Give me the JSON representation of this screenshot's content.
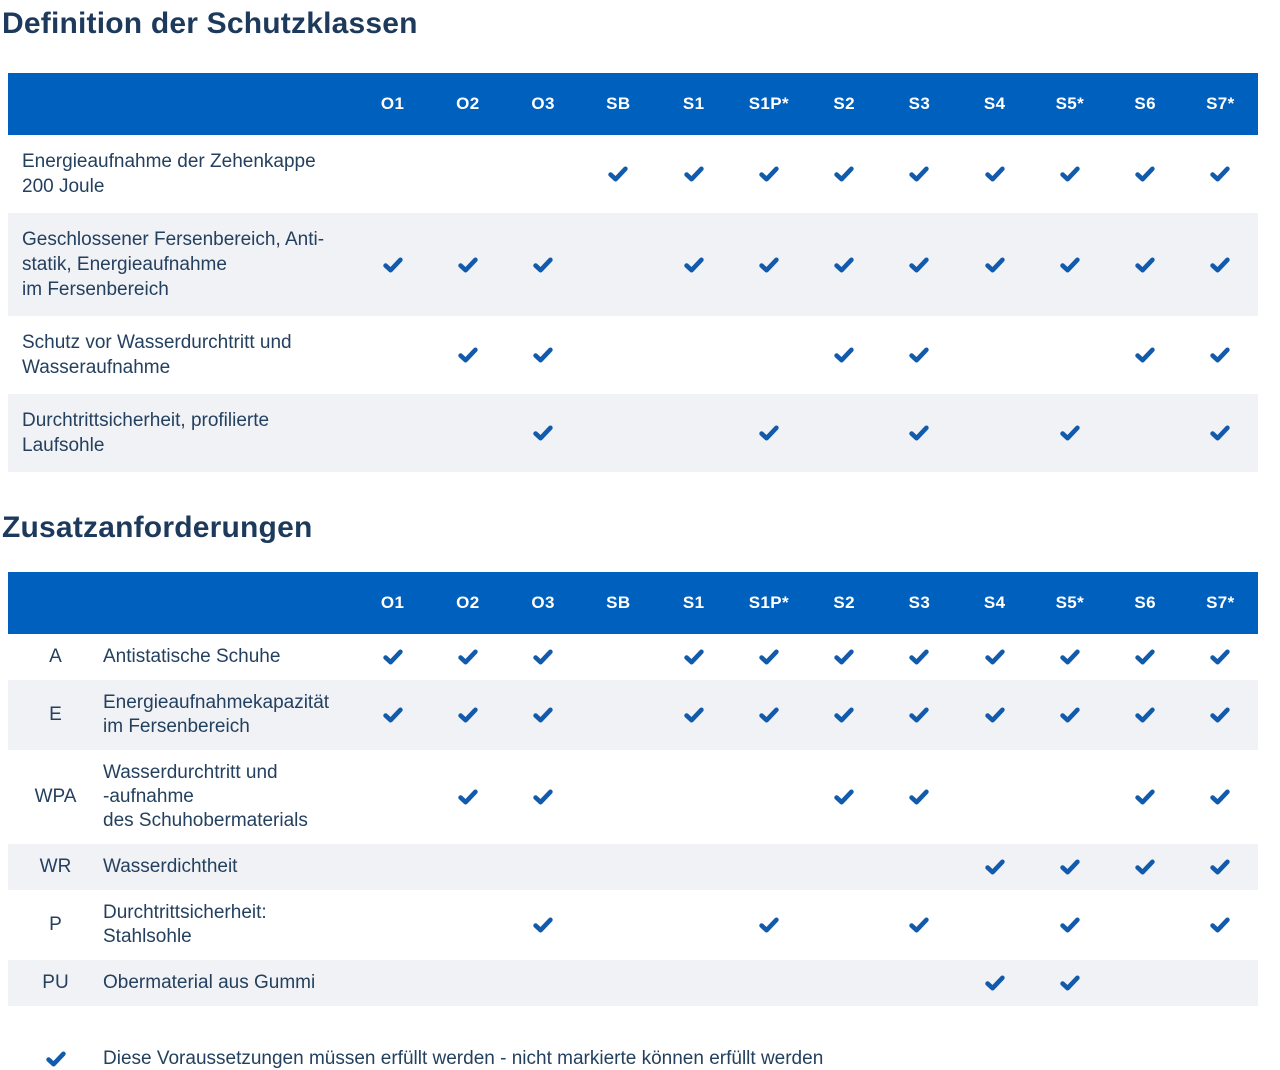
{
  "colors": {
    "header_bg": "#0060BE",
    "header_text": "#FFFFFF",
    "check": "#115AAC",
    "title_text": "#1D3A5C",
    "body_text": "#24405F",
    "stripe_bg": "#F0F2F6",
    "row_bg": "#FFFFFF"
  },
  "columns": [
    "O1",
    "O2",
    "O3",
    "SB",
    "S1",
    "S1P*",
    "S2",
    "S3",
    "S4",
    "S5*",
    "S6",
    "S7*"
  ],
  "tables": [
    {
      "title": "Definition der Schutzklassen",
      "has_code": false,
      "rows": [
        {
          "code": null,
          "label": "Energieaufnahme der Zehenkappe\n200 Joule",
          "checks": [
            0,
            0,
            0,
            1,
            1,
            1,
            1,
            1,
            1,
            1,
            1,
            1
          ]
        },
        {
          "code": null,
          "label": "Geschlossener Fersenbereich, Anti-\nstatik, Energieaufnahme\nim Fersenbereich",
          "checks": [
            1,
            1,
            1,
            0,
            1,
            1,
            1,
            1,
            1,
            1,
            1,
            1
          ]
        },
        {
          "code": null,
          "label": "Schutz vor Wasserdurchtritt und\nWasseraufnahme",
          "checks": [
            0,
            1,
            1,
            0,
            0,
            0,
            1,
            1,
            0,
            0,
            1,
            1
          ]
        },
        {
          "code": null,
          "label": "Durchtrittsicherheit, profilierte\nLaufsohle",
          "checks": [
            0,
            0,
            1,
            0,
            0,
            1,
            0,
            1,
            0,
            1,
            0,
            1
          ]
        }
      ]
    },
    {
      "title": "Zusatzanforderungen",
      "has_code": true,
      "rows": [
        {
          "code": "A",
          "label": "Antistatische Schuhe",
          "checks": [
            1,
            1,
            1,
            0,
            1,
            1,
            1,
            1,
            1,
            1,
            1,
            1
          ]
        },
        {
          "code": "E",
          "label": "Energieaufnahmekapazität\nim Fersenbereich",
          "checks": [
            1,
            1,
            1,
            0,
            1,
            1,
            1,
            1,
            1,
            1,
            1,
            1
          ]
        },
        {
          "code": "WPA",
          "label": "Wasserdurchtritt und\n-aufnahme\ndes Schuhobermaterials",
          "checks": [
            0,
            1,
            1,
            0,
            0,
            0,
            1,
            1,
            0,
            0,
            1,
            1
          ]
        },
        {
          "code": "WR",
          "label": "Wasserdichtheit",
          "checks": [
            0,
            0,
            0,
            0,
            0,
            0,
            0,
            0,
            1,
            1,
            1,
            1
          ]
        },
        {
          "code": "P",
          "label": "Durchtrittsicherheit:\nStahlsohle",
          "checks": [
            0,
            0,
            1,
            0,
            0,
            1,
            0,
            1,
            0,
            1,
            0,
            1
          ]
        },
        {
          "code": "PU",
          "label": "Obermaterial aus Gummi",
          "checks": [
            0,
            0,
            0,
            0,
            0,
            0,
            0,
            0,
            1,
            1,
            0,
            0
          ]
        }
      ]
    }
  ],
  "legend": {
    "text": "Diese Voraussetzungen müssen erfüllt werden - nicht markierte können erfüllt werden"
  }
}
